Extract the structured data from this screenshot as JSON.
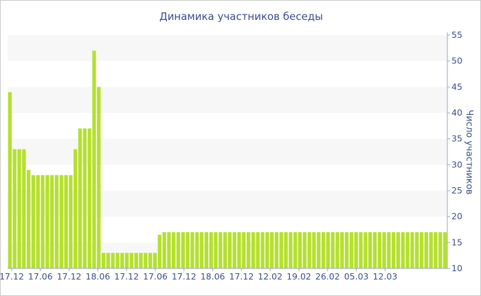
{
  "chart_data": {
    "type": "bar",
    "title": "Динамика участников беседы",
    "xlabel": "",
    "ylabel": "Число участников",
    "ylim": [
      10,
      55
    ],
    "y_ticks": [
      10,
      15,
      20,
      25,
      30,
      35,
      40,
      45,
      50,
      55
    ],
    "x_tick_labels": [
      "17.12",
      "17.06",
      "17.12",
      "18.06",
      "17.12",
      "17.06",
      "17.12",
      "18.06",
      "17.12",
      "12.02",
      "19.02",
      "26.02",
      "05.03",
      "12.03"
    ],
    "grid": "alternating horizontal bands",
    "legend": "none",
    "bar_color": "#b5e02c",
    "band_color": "#f7f7f7",
    "text_color": "#3a4d8c",
    "series": [
      {
        "values": [
          44,
          33,
          33,
          33,
          29,
          28,
          28,
          28,
          28,
          28,
          28,
          28,
          28,
          28,
          33,
          37,
          37,
          37,
          52,
          45,
          13,
          13,
          13,
          13,
          13,
          13,
          13,
          13,
          13,
          13,
          13,
          13,
          16.5,
          17,
          17,
          17,
          17,
          17,
          17,
          17,
          17,
          17,
          17,
          17,
          17,
          17,
          17,
          17,
          17,
          17,
          17,
          17,
          17,
          17,
          17,
          17,
          17,
          17,
          17,
          17,
          17,
          17,
          17,
          17,
          17,
          17,
          17,
          17,
          17,
          17,
          17,
          17,
          17,
          17,
          17,
          17,
          17,
          17,
          17,
          17,
          17,
          17,
          17,
          17,
          17,
          17,
          17,
          17,
          17,
          17,
          17,
          17,
          17,
          17
        ]
      }
    ]
  }
}
